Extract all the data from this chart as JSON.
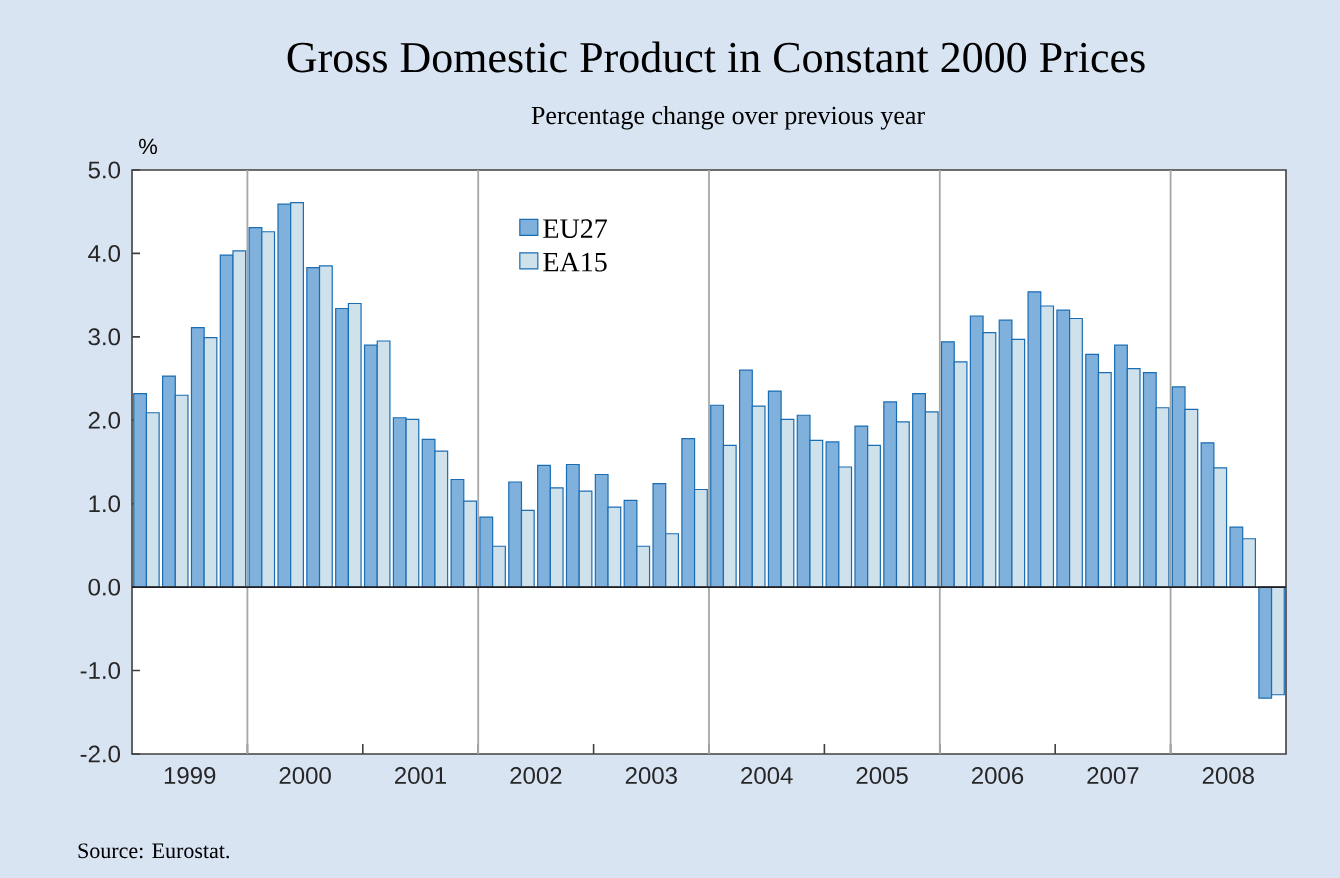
{
  "chart_data": {
    "type": "bar",
    "title": "Gross Domestic Product in Constant 2000 Prices",
    "subtitle": "Percentage change over previous year",
    "ylabel": "%",
    "annotations": [
      "Source: Eurostat."
    ],
    "x": [
      1999.125,
      1999.375,
      1999.625,
      1999.875,
      2000.125,
      2000.375,
      2000.625,
      2000.875,
      2001.125,
      2001.375,
      2001.625,
      2001.875,
      2002.125,
      2002.375,
      2002.625,
      2002.875,
      2003.125,
      2003.375,
      2003.625,
      2003.875,
      2004.125,
      2004.375,
      2004.625,
      2004.875,
      2005.125,
      2005.375,
      2005.625,
      2005.875,
      2006.125,
      2006.375,
      2006.625,
      2006.875,
      2007.125,
      2007.375,
      2007.625,
      2007.875,
      2008.125,
      2008.375,
      2008.625,
      2008.875
    ],
    "series": [
      {
        "name": "EU27",
        "color": "#7fb1dc",
        "values": [
          2.32,
          2.53,
          3.11,
          3.98,
          4.31,
          4.59,
          3.83,
          3.34,
          2.9,
          2.03,
          1.77,
          1.29,
          0.84,
          1.26,
          1.46,
          1.47,
          1.35,
          1.04,
          1.24,
          1.78,
          2.18,
          2.6,
          2.35,
          2.06,
          1.74,
          1.93,
          2.22,
          2.32,
          2.94,
          3.25,
          3.2,
          3.54,
          3.32,
          2.79,
          2.9,
          2.57,
          2.4,
          1.73,
          0.72,
          -1.33
        ]
      },
      {
        "name": "EA15",
        "color": "#cfe1eb",
        "values": [
          2.09,
          2.3,
          2.99,
          4.03,
          4.26,
          4.61,
          3.85,
          3.4,
          2.95,
          2.01,
          1.63,
          1.03,
          0.49,
          0.92,
          1.19,
          1.15,
          0.96,
          0.49,
          0.64,
          1.17,
          1.7,
          2.17,
          2.01,
          1.76,
          1.44,
          1.7,
          1.98,
          2.1,
          2.7,
          3.05,
          2.97,
          3.37,
          3.22,
          2.57,
          2.62,
          2.15,
          2.13,
          1.43,
          0.58,
          -1.29
        ]
      }
    ],
    "xlim": [
      1999,
      2009
    ],
    "xticks": [
      {
        "value": 1999.5,
        "label": "1999"
      },
      {
        "value": 2000.5,
        "label": "2000"
      },
      {
        "value": 2001.5,
        "label": "2001"
      },
      {
        "value": 2002.5,
        "label": "2002"
      },
      {
        "value": 2003.5,
        "label": "2003"
      },
      {
        "value": 2004.5,
        "label": "2004"
      },
      {
        "value": 2005.5,
        "label": "2005"
      },
      {
        "value": 2006.5,
        "label": "2006"
      },
      {
        "value": 2007.5,
        "label": "2007"
      },
      {
        "value": 2008.5,
        "label": "2008"
      },
      {
        "value": 2000,
        "label": null
      },
      {
        "value": 2001,
        "label": null
      },
      {
        "value": 2002,
        "label": null
      },
      {
        "value": 2003,
        "label": null
      },
      {
        "value": 2004,
        "label": null
      },
      {
        "value": 2005,
        "label": null
      },
      {
        "value": 2006,
        "label": null
      },
      {
        "value": 2007,
        "label": null
      },
      {
        "value": 2008,
        "label": null
      }
    ],
    "ylim": [
      -2,
      5
    ],
    "yticks": [
      {
        "value": -2,
        "label": "-2.0"
      },
      {
        "value": -1,
        "label": "-1.0"
      },
      {
        "value": 0,
        "label": "0.0"
      },
      {
        "value": 1,
        "label": "1.0"
      },
      {
        "value": 2,
        "label": "2.0"
      },
      {
        "value": 3,
        "label": "3.0"
      },
      {
        "value": 4,
        "label": "4.0"
      },
      {
        "value": 5,
        "label": "5.0"
      }
    ],
    "ref_lines": [
      {
        "axis": "x",
        "value": 2000,
        "color": "#a6a6a6"
      },
      {
        "axis": "x",
        "value": 2002,
        "color": "#a6a6a6"
      },
      {
        "axis": "x",
        "value": 2004,
        "color": "#a6a6a6"
      },
      {
        "axis": "x",
        "value": 2006,
        "color": "#a6a6a6"
      },
      {
        "axis": "x",
        "value": 2008,
        "color": "#a6a6a6"
      },
      {
        "axis": "y",
        "value": 0,
        "color": "#231f20"
      }
    ],
    "legend": "top",
    "grid": false
  }
}
